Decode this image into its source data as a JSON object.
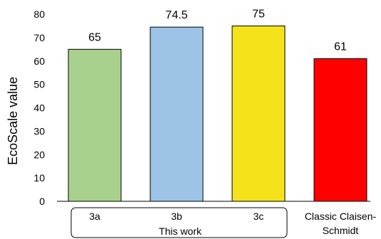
{
  "chart_data": {
    "type": "bar",
    "categories": [
      "3a",
      "3b",
      "3c",
      "Classic Claisen-Schmidt"
    ],
    "category_lines": [
      [
        "3a"
      ],
      [
        "3b"
      ],
      [
        "3c"
      ],
      [
        "Classic Claisen-",
        "Schmidt"
      ]
    ],
    "values": [
      65,
      74.5,
      75,
      61
    ],
    "data_labels": [
      "65",
      "74.5",
      "75",
      "61"
    ],
    "colors": [
      "#a9d18e",
      "#9dc3e6",
      "#f5e21b",
      "#ff0000"
    ],
    "ylabel": "EcoScale value",
    "ylim": [
      0,
      80
    ],
    "yticks": [
      0,
      10,
      20,
      30,
      40,
      50,
      60,
      70,
      80
    ],
    "grid": false,
    "group_label": "This work",
    "group_members": [
      "3a",
      "3b",
      "3c"
    ]
  }
}
